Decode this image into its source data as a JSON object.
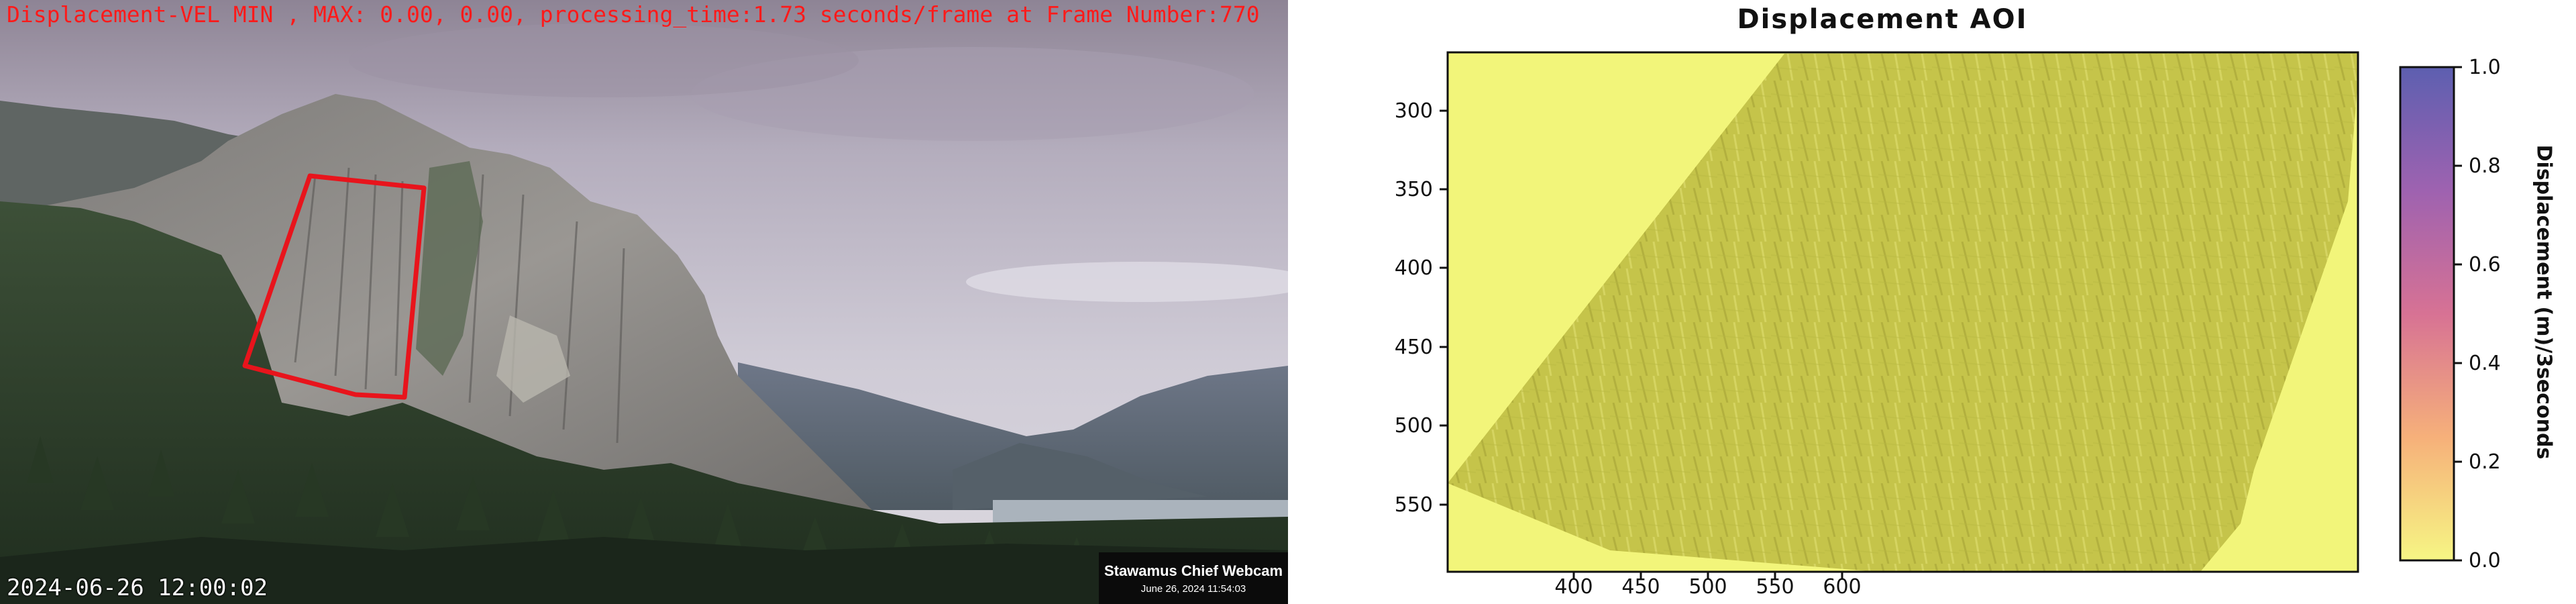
{
  "webcam": {
    "overlay_title": "Displacement-VEL MIN , MAX: 0.00, 0.00, processing_time:1.73 seconds/frame at Frame Number:770",
    "timestamp": "2024-06-26 12:00:02",
    "badge_title": "Stawamus Chief Webcam",
    "badge_date": "June 26, 2024 11:54:03",
    "roi_color": "#e8141c"
  },
  "plot": {
    "title": "Displacement AOI",
    "colorbar_label": "Displacement (m)/3seconds",
    "colorbar_ticks": [
      "1.0",
      "0.8",
      "0.6",
      "0.4",
      "0.2",
      "0.0"
    ],
    "y_ticks": [
      "300",
      "350",
      "400",
      "450",
      "500",
      "550"
    ],
    "x_ticks": [
      "400",
      "450",
      "500",
      "550",
      "600"
    ],
    "colors": {
      "background_yellow": "#f2f57a",
      "surface_olive": "#c7c64a",
      "colormap_top": "#5d5fb0",
      "colormap_bottom": "#f6f684"
    }
  }
}
